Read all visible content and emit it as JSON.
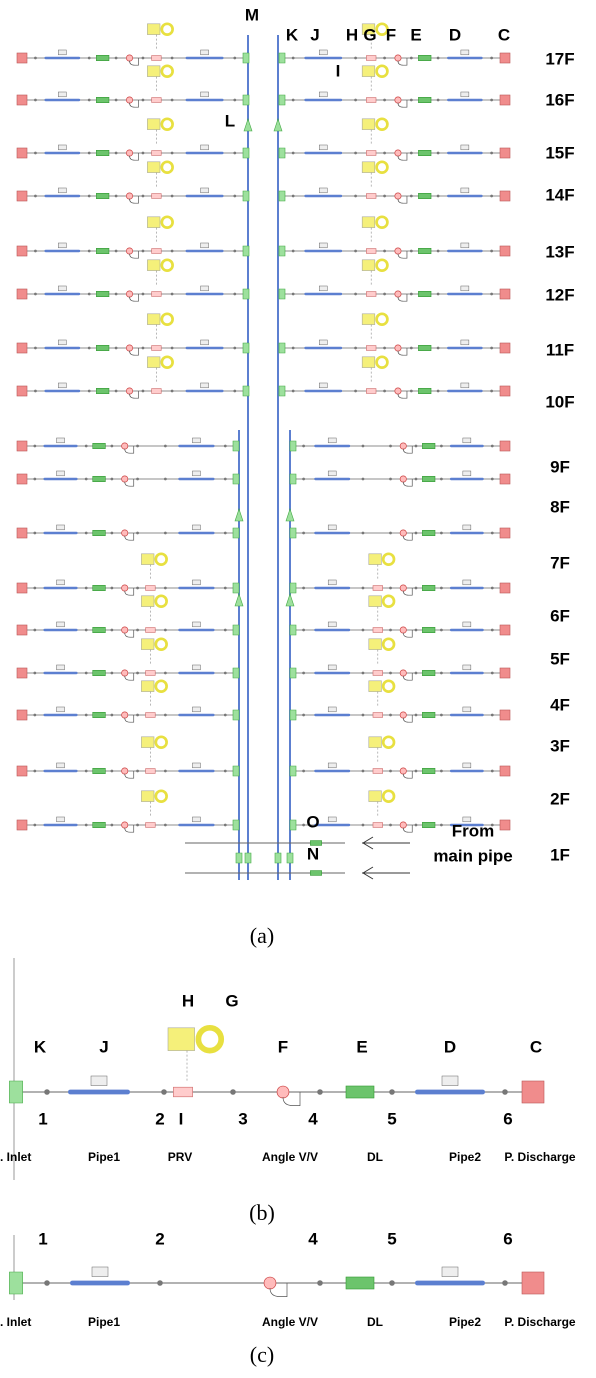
{
  "panel_a": {
    "top_labels": [
      "M",
      "K",
      "J",
      "H",
      "G",
      "F",
      "E",
      "D",
      "C"
    ],
    "label_I": "I",
    "label_L": "L",
    "floors": [
      "17F",
      "16F",
      "15F",
      "14F",
      "13F",
      "12F",
      "11F",
      "10F",
      "9F",
      "8F",
      "7F",
      "6F",
      "5F",
      "4F",
      "3F",
      "2F",
      "1F"
    ],
    "label_O": "O",
    "label_N": "N",
    "note": [
      "From",
      "main pipe"
    ],
    "caption": "(a)"
  },
  "panel_b": {
    "letters": [
      "K",
      "J",
      "H",
      "G",
      "F",
      "E",
      "D",
      "C"
    ],
    "letter_I": "I",
    "nodes": [
      "1",
      "2",
      "3",
      "4",
      "5",
      "6"
    ],
    "components": [
      ". Inlet",
      "Pipe1",
      "PRV",
      "Angle V/V",
      "DL",
      "Pipe2",
      "P. Discharge"
    ],
    "caption": "(b)"
  },
  "panel_c": {
    "nodes": [
      "1",
      "2",
      "4",
      "5",
      "6"
    ],
    "components": [
      ". Inlet",
      "Pipe1",
      "Angle V/V",
      "DL",
      "Pipe2",
      "P. Discharge"
    ],
    "caption": "(c)"
  }
}
